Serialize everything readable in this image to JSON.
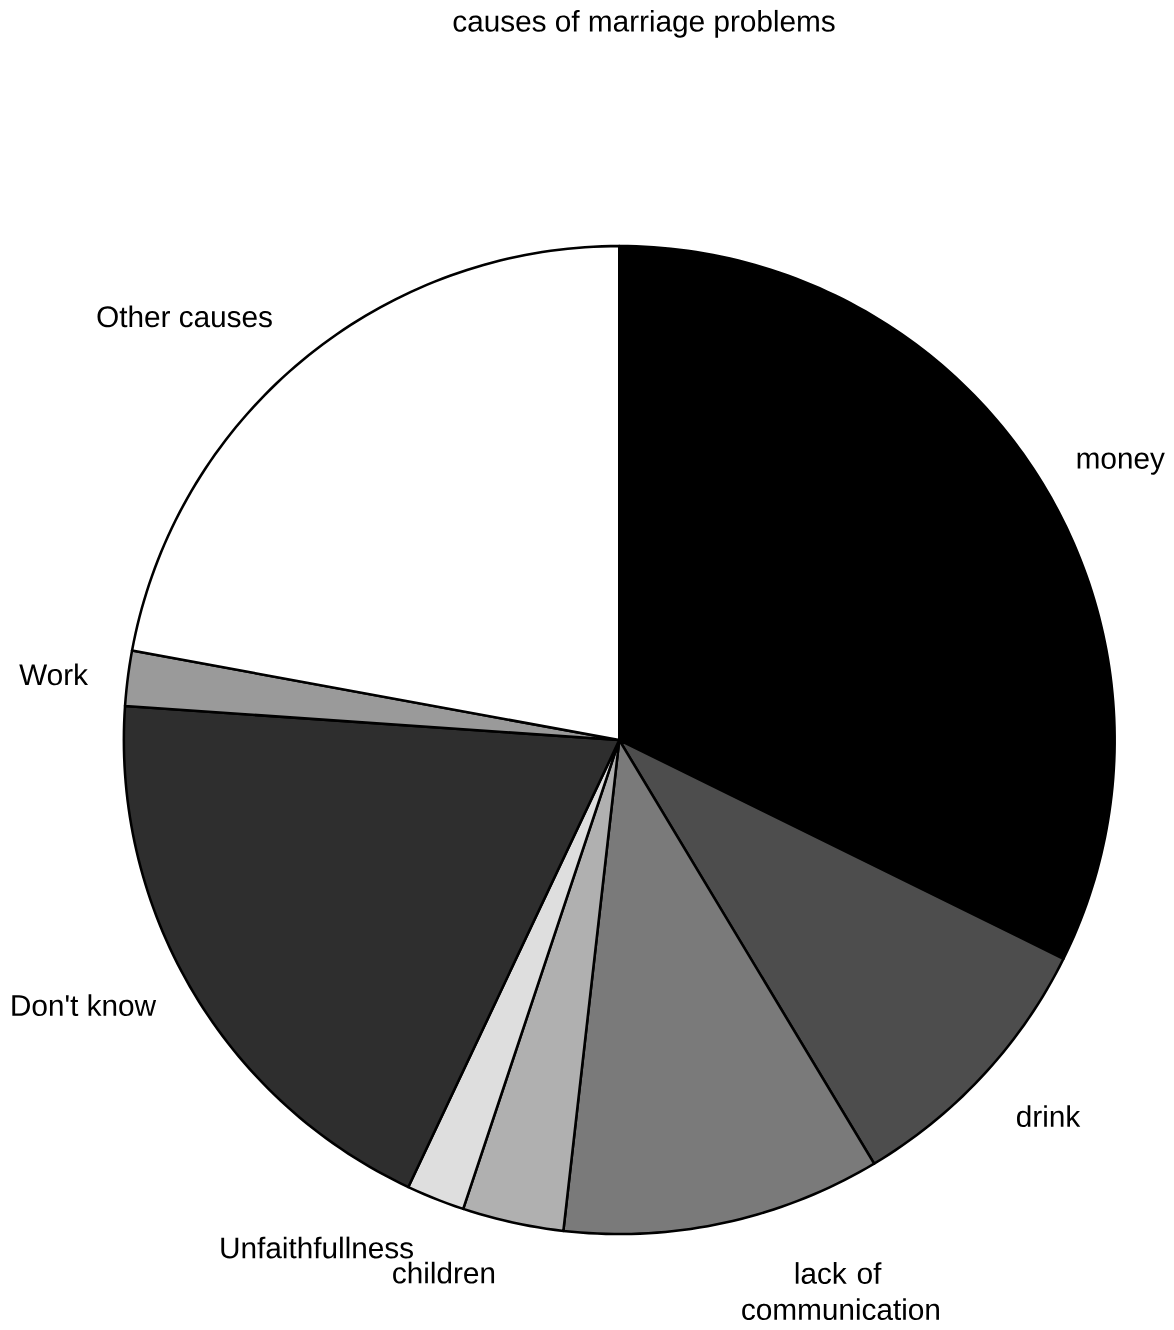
{
  "chart_data": {
    "type": "pie",
    "title": "causes of marriage problems",
    "categories": [
      "money",
      "drink",
      "lack of communication",
      "children",
      "Unfaithfullness",
      "Don't know",
      "Work",
      "Other causes"
    ],
    "values": [
      32.3,
      9.1,
      10.4,
      3.3,
      1.9,
      19.1,
      1.8,
      22.1
    ],
    "colors": [
      "#000000",
      "#4d4d4d",
      "#7a7a7a",
      "#b0b0b0",
      "#dedede",
      "#2e2e2e",
      "#9a9a9a",
      "#ffffff"
    ]
  }
}
